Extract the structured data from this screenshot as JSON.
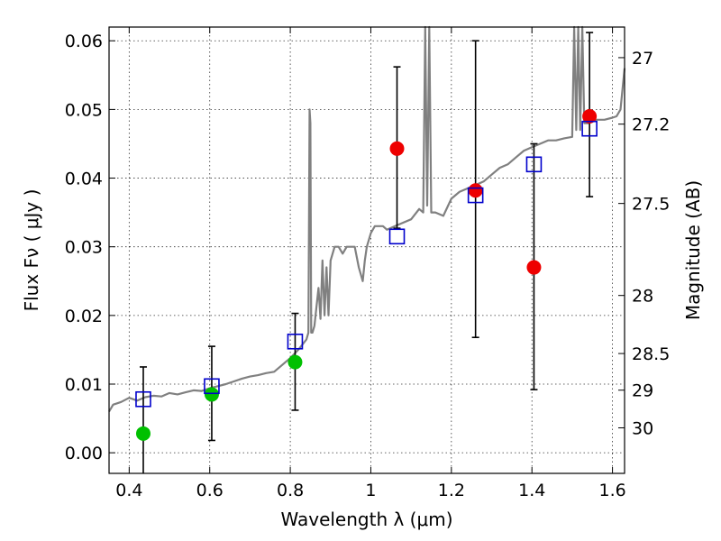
{
  "chart_data": {
    "type": "scatter",
    "title": "",
    "xlabel": "Wavelength  λ (μm)",
    "ylabel": "Flux  Fν  ( μJy )",
    "ylabel_right": "Magnitude (AB)",
    "xlim": [
      0.35,
      1.63
    ],
    "ylim": [
      -0.003,
      0.062
    ],
    "grid": true,
    "x_ticks": [
      {
        "value": 0.4,
        "label": "0.4"
      },
      {
        "value": 0.6,
        "label": "0.6"
      },
      {
        "value": 0.8,
        "label": "0.8"
      },
      {
        "value": 1.0,
        "label": "1"
      },
      {
        "value": 1.2,
        "label": "1.2"
      },
      {
        "value": 1.4,
        "label": "1.4"
      },
      {
        "value": 1.6,
        "label": "1.6"
      }
    ],
    "y_ticks": [
      {
        "value": 0.0,
        "label": "0.00"
      },
      {
        "value": 0.01,
        "label": "0.01"
      },
      {
        "value": 0.02,
        "label": "0.02"
      },
      {
        "value": 0.03,
        "label": "0.03"
      },
      {
        "value": 0.04,
        "label": "0.04"
      },
      {
        "value": 0.05,
        "label": "0.05"
      },
      {
        "value": 0.06,
        "label": "0.06"
      }
    ],
    "right_ticks": [
      {
        "mag": 27.0,
        "label": "27"
      },
      {
        "mag": 27.2,
        "label": "27.2"
      },
      {
        "mag": 27.5,
        "label": "27.5"
      },
      {
        "mag": 28.0,
        "label": "28"
      },
      {
        "mag": 28.5,
        "label": "28.5"
      },
      {
        "mag": 29.0,
        "label": "29"
      },
      {
        "mag": 30.0,
        "label": "30"
      }
    ],
    "colors": {
      "model": "#808080",
      "green": "#00c000",
      "red": "#ee0000",
      "square": "#0000cc",
      "errorbar": "#000000"
    },
    "model_spectrum": {
      "x": [
        0.35,
        0.36,
        0.38,
        0.4,
        0.42,
        0.44,
        0.46,
        0.48,
        0.5,
        0.52,
        0.54,
        0.56,
        0.58,
        0.6,
        0.62,
        0.64,
        0.66,
        0.68,
        0.7,
        0.72,
        0.74,
        0.76,
        0.78,
        0.8,
        0.82,
        0.84,
        0.845,
        0.848,
        0.85,
        0.852,
        0.855,
        0.86,
        0.87,
        0.875,
        0.88,
        0.885,
        0.89,
        0.895,
        0.9,
        0.91,
        0.92,
        0.93,
        0.94,
        0.95,
        0.96,
        0.97,
        0.98,
        0.985,
        0.99,
        1.0,
        1.01,
        1.02,
        1.03,
        1.04,
        1.06,
        1.08,
        1.1,
        1.12,
        1.13,
        1.135,
        1.14,
        1.145,
        1.15,
        1.16,
        1.18,
        1.2,
        1.22,
        1.24,
        1.26,
        1.28,
        1.3,
        1.32,
        1.34,
        1.36,
        1.38,
        1.4,
        1.42,
        1.44,
        1.46,
        1.48,
        1.5,
        1.505,
        1.51,
        1.515,
        1.52,
        1.525,
        1.53,
        1.54,
        1.56,
        1.58,
        1.6,
        1.61,
        1.62,
        1.63
      ],
      "y": [
        0.006,
        0.007,
        0.0074,
        0.008,
        0.0076,
        0.0081,
        0.0083,
        0.0082,
        0.0087,
        0.0085,
        0.0088,
        0.0091,
        0.009,
        0.0094,
        0.0097,
        0.01,
        0.0104,
        0.0108,
        0.0111,
        0.0113,
        0.0116,
        0.0118,
        0.0128,
        0.0138,
        0.015,
        0.0165,
        0.0175,
        0.05,
        0.048,
        0.0175,
        0.0175,
        0.0185,
        0.024,
        0.0195,
        0.028,
        0.02,
        0.027,
        0.02,
        0.028,
        0.03,
        0.03,
        0.029,
        0.03,
        0.03,
        0.03,
        0.027,
        0.025,
        0.028,
        0.03,
        0.032,
        0.033,
        0.033,
        0.033,
        0.0325,
        0.033,
        0.0335,
        0.034,
        0.0355,
        0.035,
        0.062,
        0.036,
        0.062,
        0.035,
        0.035,
        0.0345,
        0.037,
        0.038,
        0.0385,
        0.039,
        0.0395,
        0.0405,
        0.0415,
        0.042,
        0.043,
        0.044,
        0.0445,
        0.045,
        0.0455,
        0.0455,
        0.0458,
        0.046,
        0.062,
        0.047,
        0.062,
        0.047,
        0.062,
        0.048,
        0.048,
        0.0485,
        0.0485,
        0.0488,
        0.049,
        0.05,
        0.056
      ]
    },
    "series": [
      {
        "marker": "circle-green",
        "x": [
          0.435,
          0.605,
          0.812
        ],
        "y": [
          0.0028,
          0.0085,
          0.0132
        ]
      },
      {
        "marker": "circle-red",
        "x": [
          1.065,
          1.26,
          1.405,
          1.543
        ],
        "y": [
          0.0443,
          0.0382,
          0.027,
          0.049
        ]
      },
      {
        "marker": "square-blue",
        "x": [
          0.435,
          0.605,
          0.812,
          1.065,
          1.26,
          1.405,
          1.543
        ],
        "y": [
          0.0078,
          0.0097,
          0.0162,
          0.0315,
          0.0375,
          0.042,
          0.0472
        ]
      }
    ],
    "error_bars": [
      {
        "x": 0.435,
        "low": -0.003,
        "high": 0.0125
      },
      {
        "x": 0.605,
        "low": 0.0018,
        "high": 0.0155
      },
      {
        "x": 0.812,
        "low": 0.0062,
        "high": 0.0203
      },
      {
        "x": 1.065,
        "low": 0.0327,
        "high": 0.0562
      },
      {
        "x": 1.26,
        "low": 0.0168,
        "high": 0.06
      },
      {
        "x": 1.405,
        "low": 0.0092,
        "high": 0.045
      },
      {
        "x": 1.543,
        "low": 0.0373,
        "high": 0.0612
      }
    ]
  }
}
